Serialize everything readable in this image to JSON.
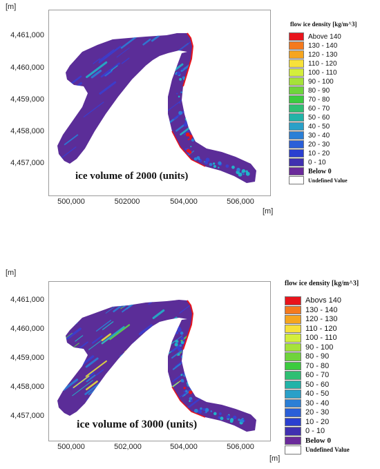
{
  "panels": [
    {
      "y_unit": "[m]",
      "x_unit": "[m]",
      "y_ticks": [
        "4,461,000",
        "4,460,000",
        "4,459,000",
        "4,458,000",
        "4,457,000"
      ],
      "x_ticks": [
        "500,000",
        "502000",
        "504,000",
        "506,000"
      ],
      "caption": "ice volume of 2000 (units)",
      "legend_title": "flow ice density [kg/m^3]",
      "legend_items": [
        "Above 140",
        "130 - 140",
        "120 - 130",
        "110 - 120",
        "100 - 110",
        "90 - 100",
        "80 - 90",
        "70 - 80",
        "60 - 70",
        "50 - 60",
        "40 - 50",
        "30 - 40",
        "20 - 30",
        "10 - 20",
        "0 - 10",
        "Below 0",
        "Undefined Value"
      ]
    },
    {
      "y_unit": "[m]",
      "x_unit": "[m]",
      "y_ticks": [
        "4,461,000",
        "4,460,000",
        "4,459,000",
        "4,458,000",
        "4,457,000"
      ],
      "x_ticks": [
        "500,000",
        "502,000",
        "504,000",
        "506,000"
      ],
      "caption": "ice volume of 3000 (units)",
      "legend_title": "flow ice density [kg/m^3]",
      "legend_items": [
        "Abovs 140",
        "130 - 140",
        "120 - 130",
        "110 - 120",
        "100 - 110",
        "90 - 100",
        "80 - 90",
        "70 - 80",
        "60 - 70",
        "50 - 60",
        "40 - 50",
        "30 - 40",
        "20 - 30",
        "10 - 20",
        "0 - 10",
        "Below 0",
        "Undefined Value"
      ]
    }
  ],
  "legend_colors": [
    "#e8141c",
    "#f47a1e",
    "#f5a51f",
    "#f7e13a",
    "#d4ee3c",
    "#a6e23a",
    "#6fd43c",
    "#3ccb3f",
    "#2fbf73",
    "#22b3a8",
    "#2aa0c8",
    "#2b7fd6",
    "#2a5fd8",
    "#2a3fd0",
    "#4030b0",
    "#6a2a9a",
    "#ffffff"
  ],
  "map_colors": {
    "base": "#5b2d98",
    "low": "#3a3fd0",
    "mid": "#2b7fd6",
    "cyan": "#22b3c8",
    "green": "#5fd44a",
    "yellow": "#e8e23a",
    "red": "#e8141c"
  }
}
